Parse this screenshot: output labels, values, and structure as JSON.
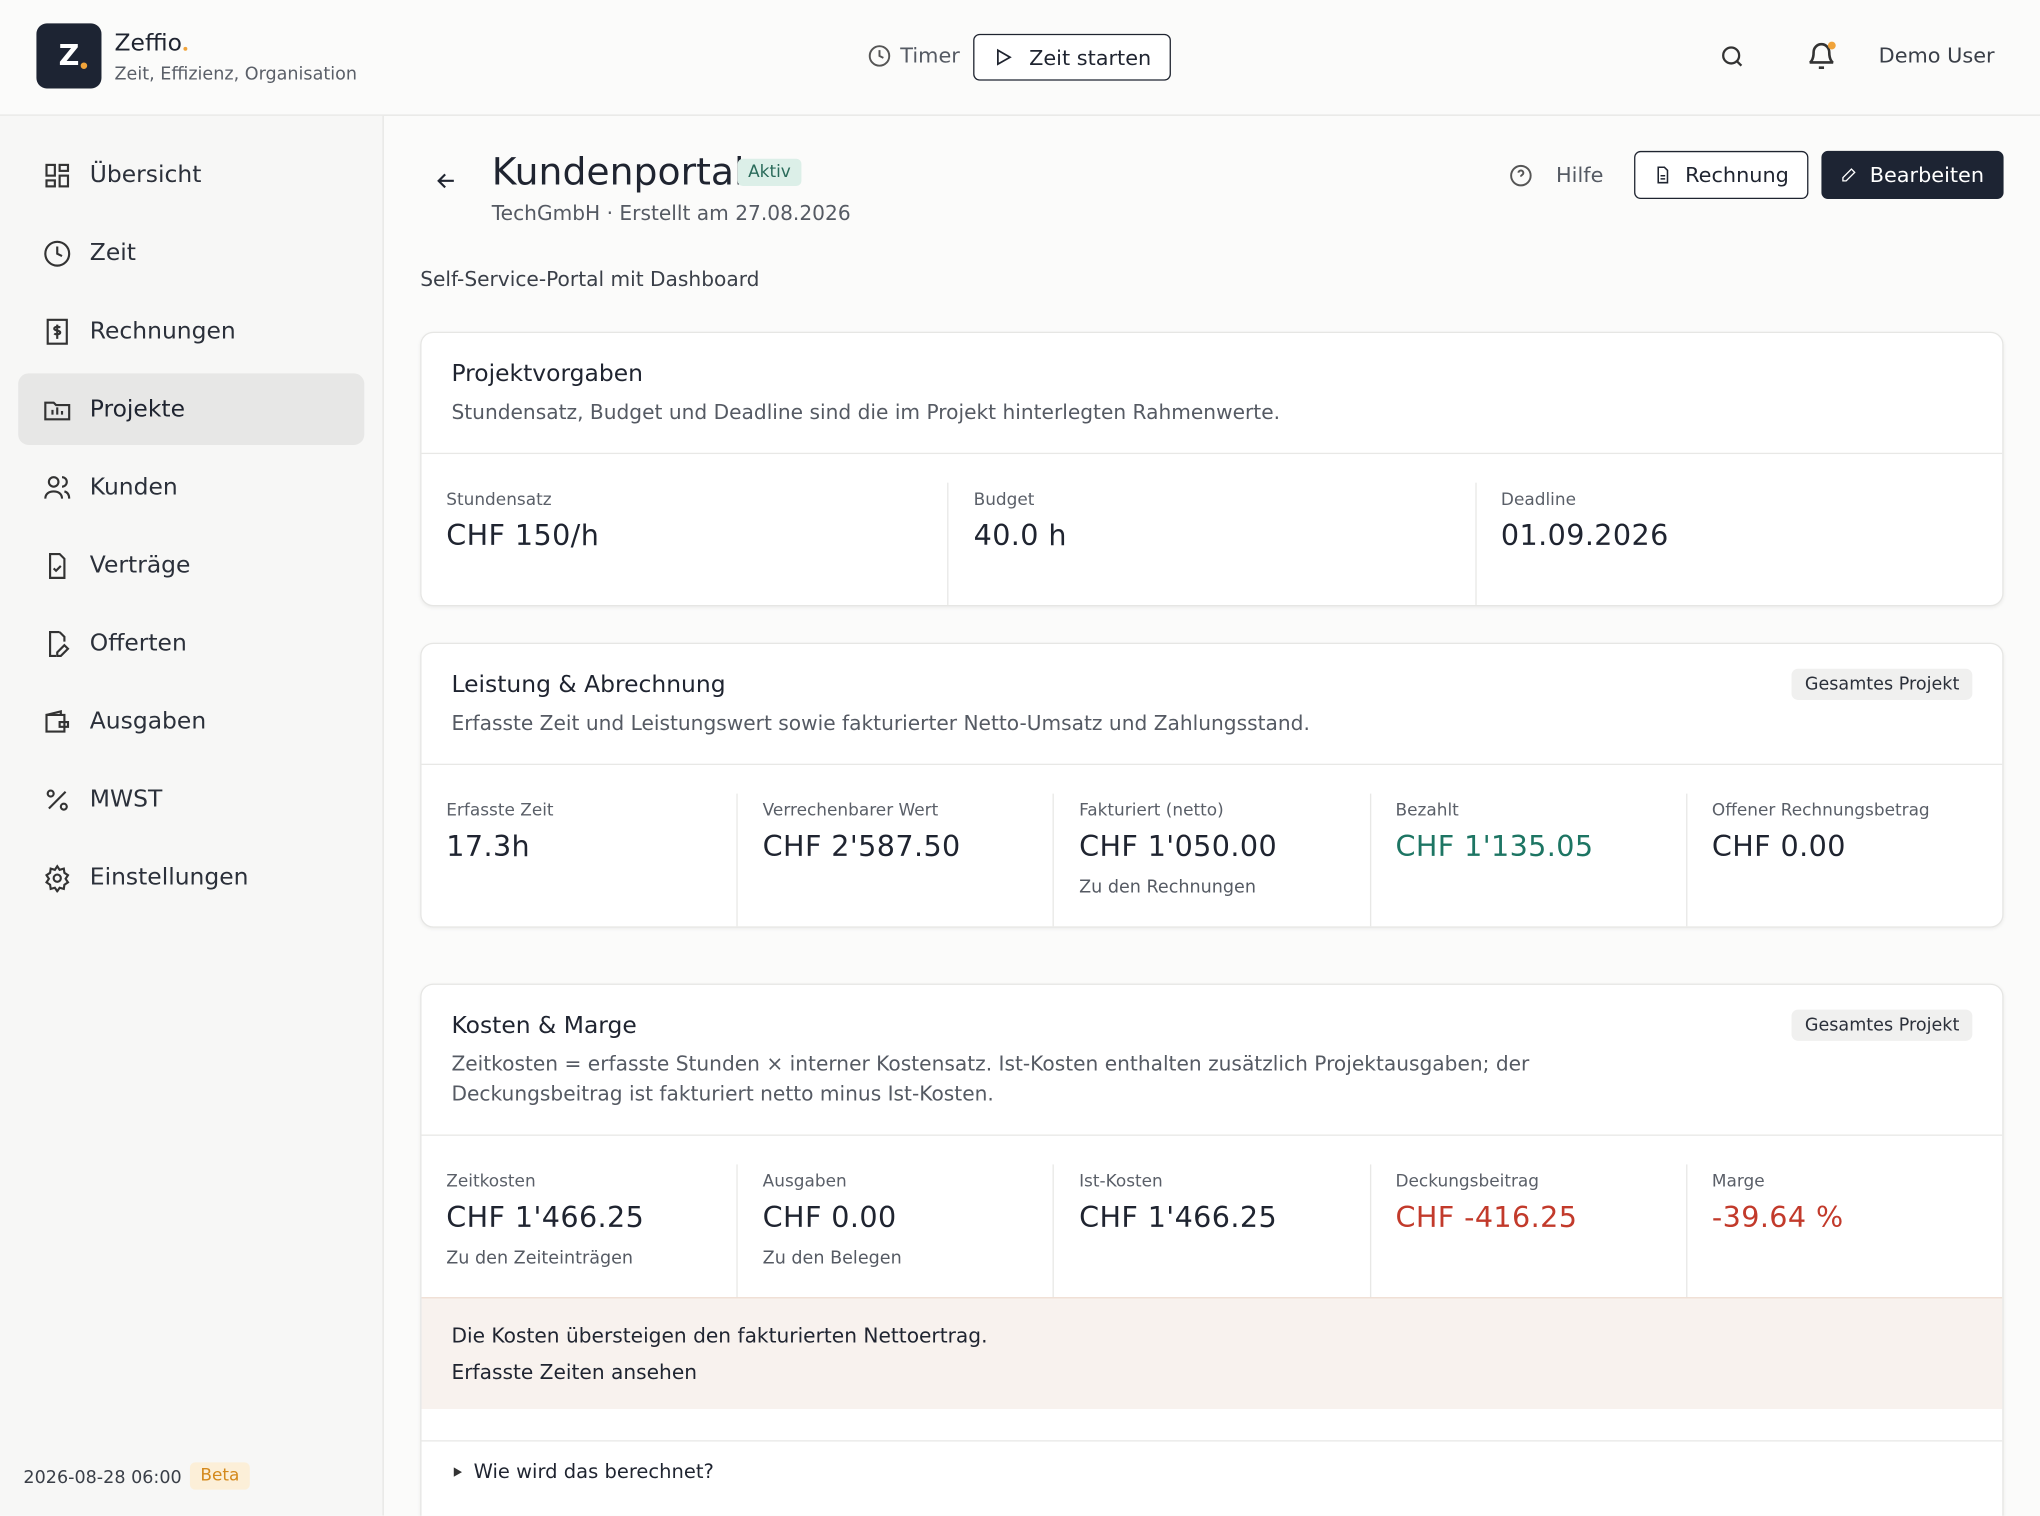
{
  "header": {
    "logo": "Z",
    "brand": "Zeffio",
    "tagline": "Zeit, Effizienz, Organisation",
    "timer": "Timer",
    "start": "Zeit starten",
    "user": "Demo User"
  },
  "sidebar": {
    "items": [
      "Übersicht",
      "Zeit",
      "Rechnungen",
      "Projekte",
      "Kunden",
      "Verträge",
      "Offerten",
      "Ausgaben",
      "MWST",
      "Einstellungen"
    ],
    "active": 3,
    "timestamp": "2026-08-28 06:00",
    "badge": "Beta"
  },
  "page": {
    "title": "Kundenportal",
    "status": "Aktiv",
    "subtitle": "TechGmbH · Erstellt am 27.08.2026",
    "help": "Hilfe",
    "invoice": "Rechnung",
    "edit": "Bearbeiten",
    "description": "Self-Service-Portal mit Dashboard"
  },
  "cards": [
    {
      "title": "Projektvorgaben",
      "description": "Stundensatz, Budget und Deadline sind die im Projekt hinterlegten Rahmenwerte.",
      "metrics": [
        {
          "label": "Stundensatz",
          "value": "CHF 150/h"
        },
        {
          "label": "Budget",
          "value": "40.0 h"
        },
        {
          "label": "Deadline",
          "value": "01.09.2026"
        }
      ]
    },
    {
      "title": "Leistung & Abrechnung",
      "badge": "Gesamtes Projekt",
      "description": "Erfasste Zeit und Leistungswert sowie fakturierter Netto-Umsatz und Zahlungsstand.",
      "metrics": [
        {
          "label": "Erfasste Zeit",
          "value": "17.3h"
        },
        {
          "label": "Verrechenbarer Wert",
          "value": "CHF 2'587.50"
        },
        {
          "label": "Fakturiert (netto)",
          "value": "CHF 1'050.00",
          "link": "Zu den Rechnungen"
        },
        {
          "label": "Bezahlt",
          "value": "CHF 1'135.05",
          "color": "#1d7563"
        },
        {
          "label": "Offener Rechnungsbetrag",
          "value": "CHF 0.00"
        }
      ]
    },
    {
      "title": "Kosten & Marge",
      "badge": "Gesamtes Projekt",
      "description": "Zeitkosten = erfasste Stunden × interner Kostensatz. Ist-Kosten enthalten zusätzlich Projektausgaben; der Deckungsbeitrag ist fakturiert netto minus Ist-Kosten.",
      "metrics": [
        {
          "label": "Zeitkosten",
          "value": "CHF 1'466.25",
          "link": "Zu den Zeiteinträgen"
        },
        {
          "label": "Ausgaben",
          "value": "CHF 0.00",
          "link": "Zu den Belegen"
        },
        {
          "label": "Ist-Kosten",
          "value": "CHF 1'466.25"
        },
        {
          "label": "Deckungsbeitrag",
          "value": "CHF -416.25",
          "color": "#c23a2b"
        },
        {
          "label": "Marge",
          "value": "-39.64 %",
          "color": "#c23a2b"
        }
      ],
      "notice": {
        "text": "Die Kosten übersteigen den fakturierten Nettoertrag.",
        "link": "Erfasste Zeiten ansehen"
      },
      "details": "Wie wird das berechnet?"
    }
  ]
}
